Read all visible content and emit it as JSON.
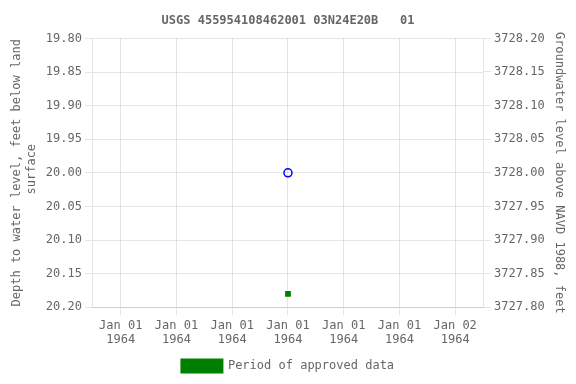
{
  "chart_data": {
    "type": "scatter",
    "title": "USGS 455954108462001 03N24E20B   01",
    "ylabel": "Depth to water level, feet below land\n surface",
    "y2label": "Groundwater level above NAVD 1988, feet",
    "categories": [
      "Jan 01\n1964",
      "Jan 01\n1964",
      "Jan 01\n1964",
      "Jan 01\n1964",
      "Jan 01\n1964",
      "Jan 01\n1964",
      "Jan 02\n1964"
    ],
    "series": [
      {
        "color": "#0000ff",
        "marker": "circle_open",
        "values": [
          null,
          null,
          null,
          20.0,
          null,
          null,
          null
        ]
      },
      {
        "name": "Period of approved data",
        "color": "#008000",
        "marker": "square",
        "values": [
          null,
          null,
          null,
          20.18,
          null,
          null,
          null
        ]
      }
    ],
    "ylim": [
      20.2,
      19.8
    ],
    "yticks": [
      {
        "value": 19.8,
        "label": "19.80"
      },
      {
        "value": 19.85,
        "label": "19.85"
      },
      {
        "value": 19.9,
        "label": "19.90"
      },
      {
        "value": 19.95,
        "label": "19.95"
      },
      {
        "value": 20.0,
        "label": "20.00"
      },
      {
        "value": 20.05,
        "label": "20.05"
      },
      {
        "value": 20.1,
        "label": "20.10"
      },
      {
        "value": 20.15,
        "label": "20.15"
      },
      {
        "value": 20.2,
        "label": "20.20"
      }
    ],
    "y2lim": [
      3727.8,
      3728.2
    ],
    "y2ticks": [
      {
        "value": 3728.2,
        "label": "3728.20"
      },
      {
        "value": 3728.15,
        "label": "3728.15"
      },
      {
        "value": 3728.1,
        "label": "3728.10"
      },
      {
        "value": 3728.05,
        "label": "3728.05"
      },
      {
        "value": 3728.0,
        "label": "3728.00"
      },
      {
        "value": 3727.95,
        "label": "3727.95"
      },
      {
        "value": 3727.9,
        "label": "3727.90"
      },
      {
        "value": 3727.85,
        "label": "3727.85"
      },
      {
        "value": 3727.8,
        "label": "3727.80"
      }
    ],
    "grid": true,
    "legend": "bottom"
  }
}
